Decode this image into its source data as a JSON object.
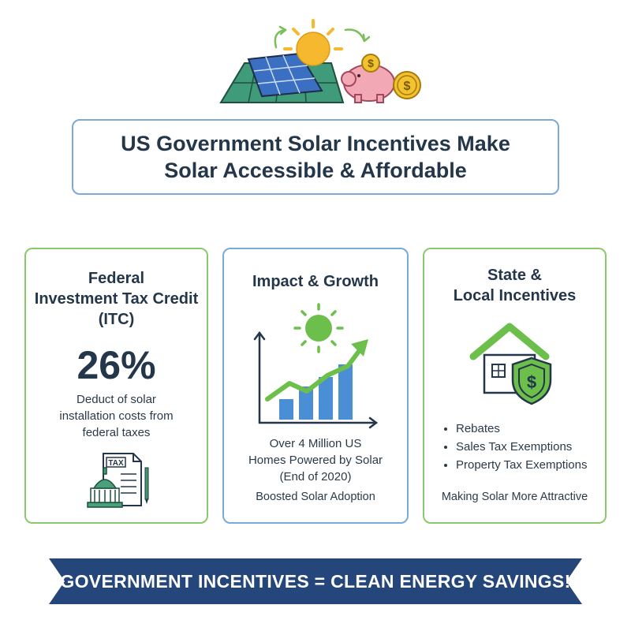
{
  "title": {
    "line1": "US Government Solar Incentives Make",
    "line2": "Solar Accessible & Affordable"
  },
  "hero": {
    "icons": [
      "sun-icon",
      "solar-panel-icon",
      "cycle-arrow-icon",
      "piggy-bank-icon",
      "coin-icon"
    ],
    "coin_symbol": "$"
  },
  "federal": {
    "title_lines": [
      "Federal",
      "Investment Tax Credit",
      "(ITC)"
    ],
    "percent": "26%",
    "desc_lines": [
      "Deduct of solar",
      "installation costs from",
      "federal taxes"
    ],
    "icon": "tax-document-capitol-icon",
    "doc_label": "TAX"
  },
  "impact": {
    "title": "Impact & Growth",
    "icon": "growth-chart-sun-icon",
    "stat_lines": [
      "Over 4 Million US",
      "Homes Powered by Solar",
      "(End of 2020)"
    ],
    "footer": "Boosted Solar Adoption"
  },
  "state": {
    "title_lines": [
      "State &",
      "Local Incentives"
    ],
    "icon": "house-shield-dollar-icon",
    "shield_symbol": "$",
    "bullets": [
      "Rebates",
      "Sales Tax Exemptions",
      "Property Tax Exemptions"
    ],
    "footer": "Making Solar More Attractive"
  },
  "banner": {
    "text": "GOVERNMENT INCENTIVES = CLEAN ENERGY SAVINGS!"
  },
  "colors": {
    "navy": "#24467a",
    "green_border": "#8cc96a",
    "blue_border": "#7ea8d6",
    "sun_yellow": "#f5b82e",
    "piggy_pink": "#f3a8b6",
    "coin_gold": "#f2c230",
    "chart_blue": "#4a8fd6",
    "chart_green": "#6cbf4a"
  }
}
